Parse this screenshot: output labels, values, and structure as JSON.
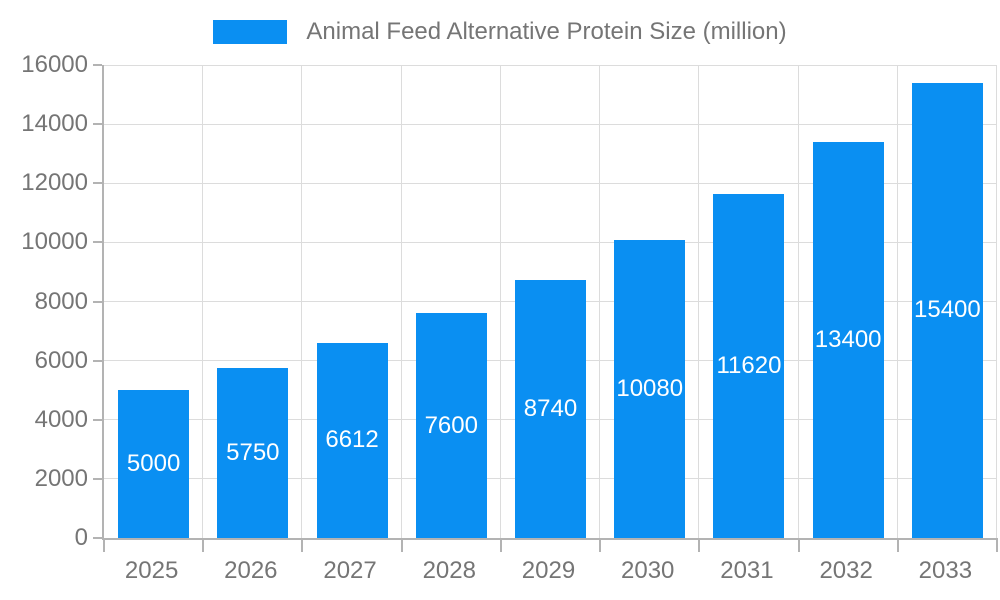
{
  "chart_data": {
    "type": "bar",
    "title": "Animal Feed Alternative Protein Size (million)",
    "categories": [
      "2025",
      "2026",
      "2027",
      "2028",
      "2029",
      "2030",
      "2031",
      "2032",
      "2033"
    ],
    "values": [
      5000,
      5750,
      6612,
      7600,
      8740,
      10080,
      11620,
      13400,
      15400
    ],
    "xlabel": "",
    "ylabel": "",
    "ylim": [
      0,
      16000
    ],
    "ytick_step": 2000,
    "grid": true,
    "legend_position": "top",
    "bar_color": "#0a8ff2",
    "bar_label_color": "#ffffff",
    "axis_text_color": "#757575",
    "grid_color": "#dcdcdc",
    "axis_line_color": "#b3b3b3"
  }
}
